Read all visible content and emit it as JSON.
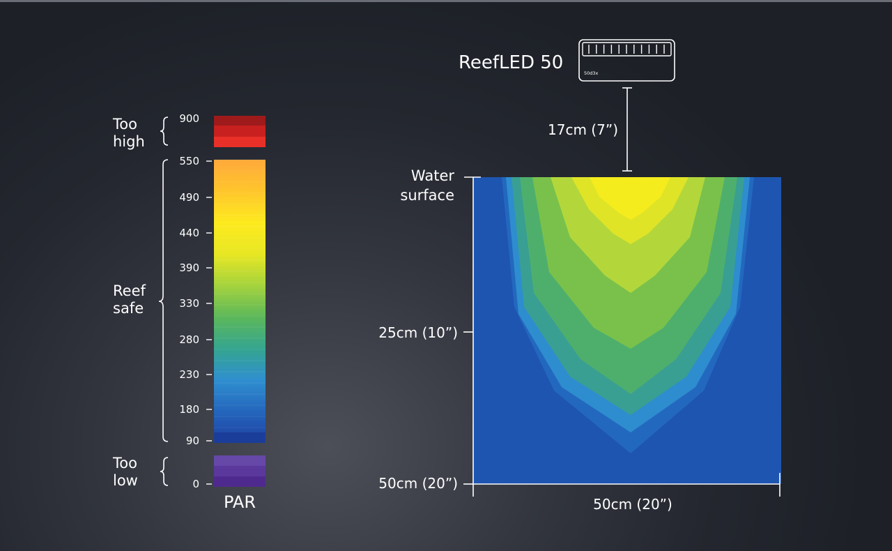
{
  "scale": {
    "label": "PAR",
    "zones": [
      {
        "name": "Too high",
        "line1": "Too",
        "line2": "high"
      },
      {
        "name": "Reef safe",
        "line1": "Reef",
        "line2": "safe"
      },
      {
        "name": "Too low",
        "line1": "Too",
        "line2": "low"
      }
    ],
    "ticks": [
      "900",
      "550",
      "490",
      "440",
      "390",
      "330",
      "280",
      "230",
      "180",
      "90",
      "0"
    ]
  },
  "fixture": {
    "name": "ReefLED 50",
    "badge": "50d3x",
    "mount_height": "17cm (7”)"
  },
  "tank": {
    "surface_line1": "Water",
    "surface_line2": "surface",
    "depth_mid": "25cm (10”)",
    "depth_bottom": "50cm (20”)",
    "width": "50cm (20”)"
  },
  "colors": {
    "too_high": [
      "#e93028",
      "#c8201e",
      "#9e1a1b"
    ],
    "too_low": [
      "#4f2a8e",
      "#5a389c",
      "#6648a8"
    ],
    "reef_safe_gradient": [
      "#1d3fa0",
      "#2466bd",
      "#2f8fcf",
      "#35a58f",
      "#5cb85a",
      "#a5d33d",
      "#e8e723",
      "#fdea1f",
      "#ffc62c",
      "#ffa93b"
    ],
    "light_field": [
      "#1e55b0",
      "#2f8fcf",
      "#58b860",
      "#b6d83a",
      "#f6ec1e"
    ]
  }
}
